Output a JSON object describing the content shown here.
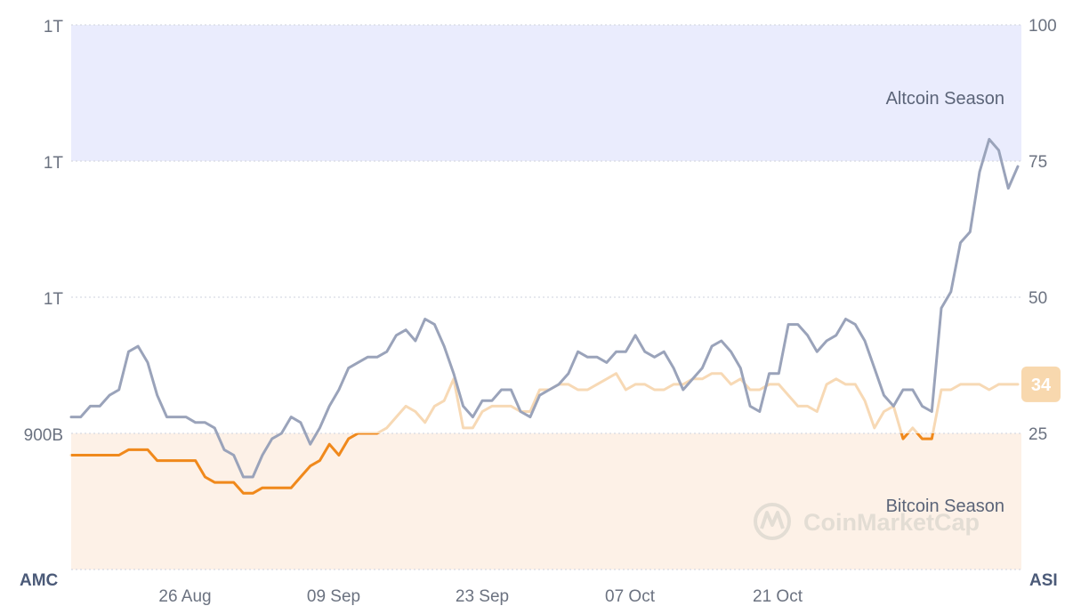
{
  "chart_data": {
    "type": "line",
    "left_axis": {
      "name": "AMC",
      "tick_labels": [
        "1T",
        "1T",
        "1T",
        "900B"
      ]
    },
    "right_axis": {
      "name": "ASI",
      "range": [
        0,
        100
      ],
      "ticks": [
        100,
        75,
        50,
        25
      ]
    },
    "x_tick_labels": [
      "26 Aug",
      "09 Sep",
      "23 Sep",
      "07 Oct",
      "21 Oct"
    ],
    "zones": [
      {
        "label": "Altcoin Season",
        "from": 75,
        "to": 100,
        "color": "#eaecfd"
      },
      {
        "label": "Bitcoin Season",
        "from": 0,
        "to": 25,
        "color": "#fdf1e7"
      }
    ],
    "series": [
      {
        "key": "market_cap",
        "color": "#9aa3ba",
        "values": [
          28,
          28,
          30,
          30,
          32,
          33,
          40,
          41,
          38,
          32,
          28,
          28,
          28,
          27,
          27,
          26,
          22,
          21,
          17,
          17,
          21,
          24,
          25,
          28,
          27,
          23,
          26,
          30,
          33,
          37,
          38,
          39,
          39,
          40,
          43,
          44,
          42,
          46,
          45,
          41,
          36,
          30,
          28,
          31,
          31,
          33,
          33,
          29,
          28,
          32,
          33,
          34,
          36,
          40,
          39,
          39,
          38,
          40,
          40,
          43,
          40,
          39,
          40,
          37,
          33,
          35,
          37,
          41,
          42,
          40,
          37,
          30,
          29,
          36,
          36,
          45,
          45,
          43,
          40,
          42,
          43,
          46,
          45,
          42,
          37,
          32,
          30,
          33,
          33,
          30,
          29,
          48,
          51,
          60,
          62,
          73,
          79,
          77,
          70,
          74
        ]
      },
      {
        "key": "altcoin_season_index",
        "color": "#f0891c",
        "current": 34,
        "values": [
          21,
          21,
          21,
          21,
          21,
          21,
          22,
          22,
          22,
          20,
          20,
          20,
          20,
          20,
          17,
          16,
          16,
          16,
          14,
          14,
          15,
          15,
          15,
          15,
          17,
          19,
          20,
          23,
          21,
          24,
          25,
          25,
          25,
          26,
          28,
          30,
          29,
          27,
          30,
          31,
          35,
          26,
          26,
          29,
          30,
          30,
          30,
          29,
          29,
          33,
          33,
          34,
          34,
          33,
          33,
          34,
          35,
          36,
          33,
          34,
          34,
          33,
          33,
          34,
          34,
          35,
          35,
          36,
          36,
          34,
          35,
          33,
          33,
          34,
          34,
          32,
          30,
          30,
          29,
          34,
          35,
          34,
          34,
          31,
          26,
          29,
          30,
          24,
          26,
          24,
          24,
          33,
          33,
          34,
          34,
          34,
          33,
          34,
          34,
          34
        ]
      }
    ]
  },
  "watermark": "CoinMarketCap"
}
